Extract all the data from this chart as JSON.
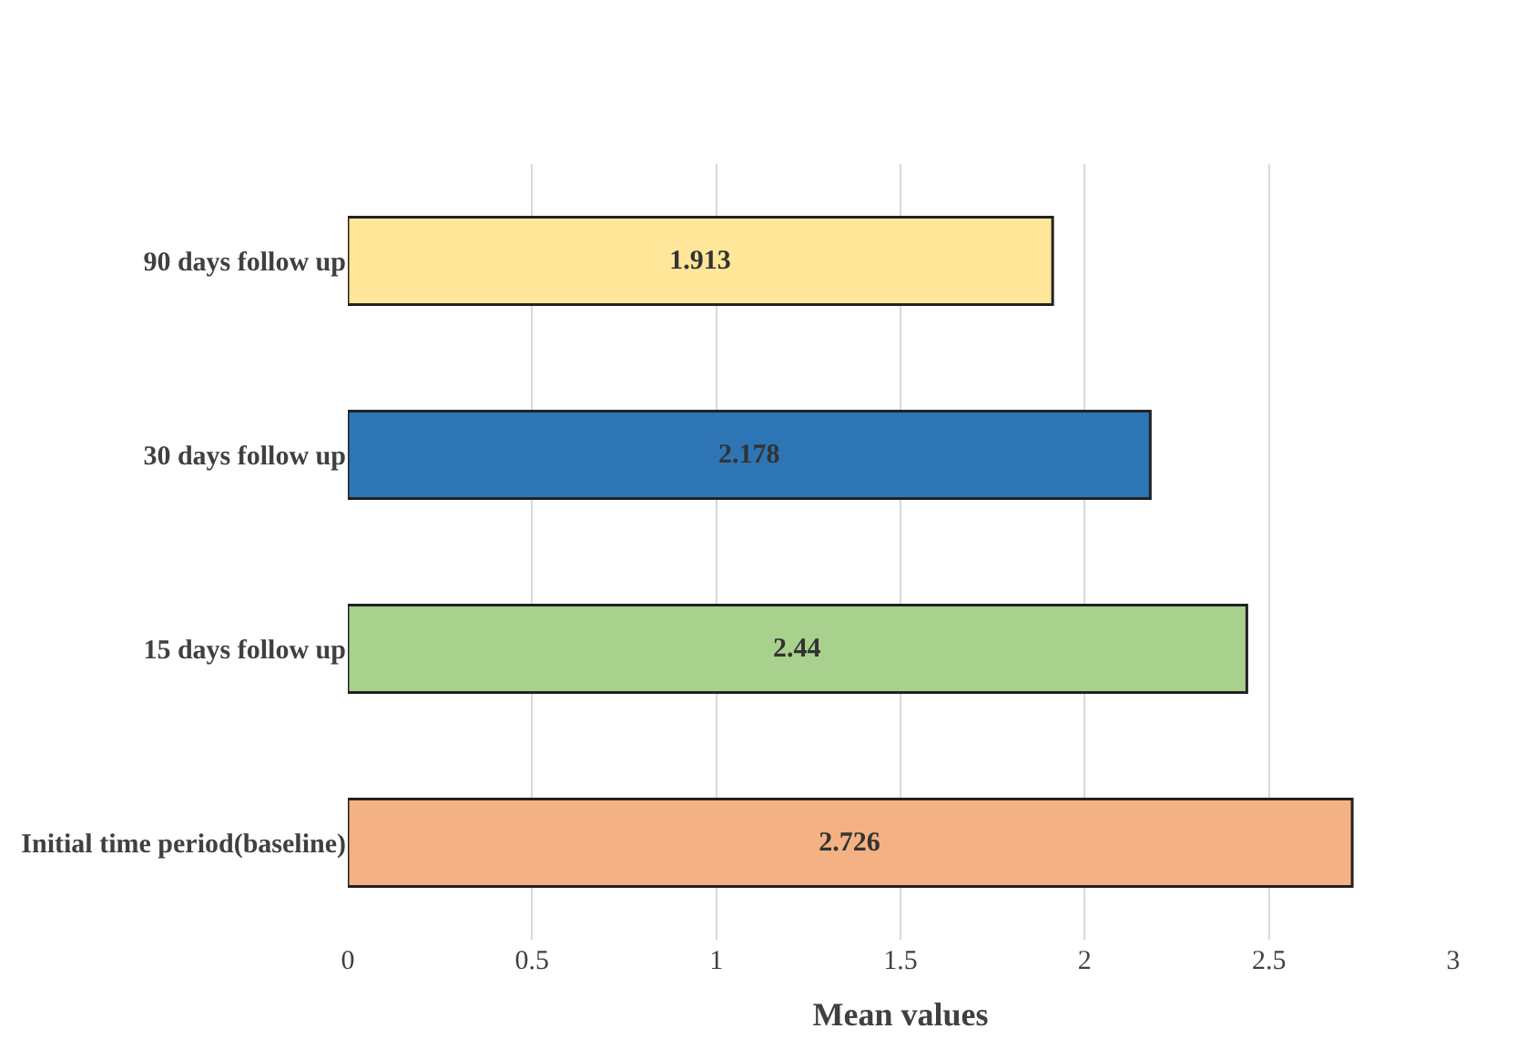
{
  "chart_data": {
    "type": "bar",
    "orientation": "horizontal",
    "xlabel": "Mean values",
    "categories": [
      "90 days follow up",
      "30 days follow up",
      "15 days follow up",
      "Initial time period(baseline)"
    ],
    "values": [
      1.913,
      2.178,
      2.44,
      2.726
    ],
    "colors": [
      "#ffe699",
      "#2e75b6",
      "#a9d18e",
      "#f4b183"
    ],
    "xlim": [
      0,
      3
    ],
    "xticks": [
      0,
      0.5,
      1,
      1.5,
      2,
      2.5,
      3
    ],
    "grid": "x",
    "data_labels": true
  }
}
